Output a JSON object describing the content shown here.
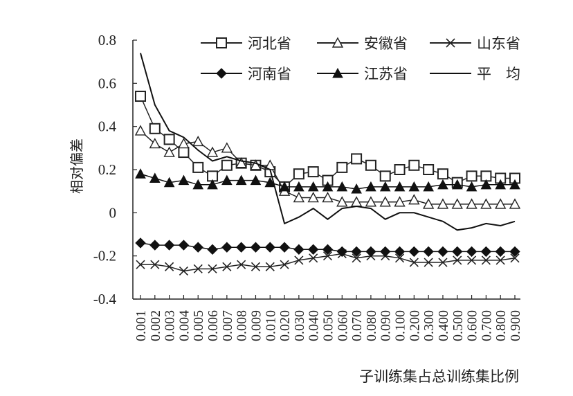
{
  "chart_data": {
    "type": "line",
    "title": "",
    "xlabel": "子训练集占总训练集比例",
    "ylabel": "相对偏差",
    "ylim": [
      -0.4,
      0.8
    ],
    "yticks": [
      "0.8",
      "0.6",
      "0.4",
      "0.2",
      "0",
      "-0.2",
      "-0.4"
    ],
    "ytick_values": [
      0.8,
      0.6,
      0.4,
      0.2,
      0,
      -0.2,
      -0.4
    ],
    "grid": false,
    "legend_position": "top",
    "categories": [
      "0.001",
      "0.002",
      "0.003",
      "0.004",
      "0.005",
      "0.006",
      "0.007",
      "0.008",
      "0.009",
      "0.010",
      "0.020",
      "0.030",
      "0.040",
      "0.050",
      "0.060",
      "0.070",
      "0.080",
      "0.090",
      "0.100",
      "0.200",
      "0.300",
      "0.400",
      "0.500",
      "0.600",
      "0.700",
      "0.800",
      "0.900"
    ],
    "series": [
      {
        "name": "河北省",
        "marker": "square-open",
        "color": "#222222",
        "values": [
          0.54,
          0.39,
          0.34,
          0.28,
          0.21,
          0.17,
          0.22,
          0.23,
          0.22,
          0.19,
          0.12,
          0.18,
          0.19,
          0.15,
          0.21,
          0.25,
          0.22,
          0.17,
          0.2,
          0.22,
          0.2,
          0.18,
          0.14,
          0.17,
          0.17,
          0.16,
          0.16
        ]
      },
      {
        "name": "安徽省",
        "marker": "triangle-open",
        "color": "#222222",
        "values": [
          0.38,
          0.32,
          0.28,
          0.32,
          0.33,
          0.28,
          0.3,
          0.23,
          0.22,
          0.22,
          0.1,
          0.07,
          0.07,
          0.07,
          0.05,
          0.05,
          0.05,
          0.05,
          0.05,
          0.06,
          0.04,
          0.04,
          0.04,
          0.04,
          0.04,
          0.04,
          0.04
        ]
      },
      {
        "name": "山东省",
        "marker": "cross",
        "color": "#222222",
        "values": [
          -0.24,
          -0.24,
          -0.25,
          -0.27,
          -0.26,
          -0.26,
          -0.25,
          -0.24,
          -0.25,
          -0.25,
          -0.24,
          -0.22,
          -0.21,
          -0.2,
          -0.19,
          -0.21,
          -0.2,
          -0.2,
          -0.21,
          -0.23,
          -0.23,
          -0.23,
          -0.22,
          -0.22,
          -0.22,
          -0.22,
          -0.21
        ]
      },
      {
        "name": "河南省",
        "marker": "diamond-filled",
        "color": "#111111",
        "values": [
          -0.14,
          -0.15,
          -0.15,
          -0.15,
          -0.16,
          -0.17,
          -0.16,
          -0.16,
          -0.16,
          -0.16,
          -0.16,
          -0.17,
          -0.17,
          -0.17,
          -0.18,
          -0.18,
          -0.18,
          -0.18,
          -0.18,
          -0.18,
          -0.18,
          -0.18,
          -0.18,
          -0.18,
          -0.18,
          -0.18,
          -0.18
        ]
      },
      {
        "name": "江苏省",
        "marker": "triangle-filled",
        "color": "#111111",
        "values": [
          0.18,
          0.16,
          0.14,
          0.15,
          0.13,
          0.13,
          0.15,
          0.15,
          0.15,
          0.14,
          0.12,
          0.12,
          0.12,
          0.12,
          0.12,
          0.11,
          0.12,
          0.12,
          0.12,
          0.12,
          0.12,
          0.13,
          0.13,
          0.12,
          0.13,
          0.13,
          0.13
        ]
      },
      {
        "name": "平　均",
        "marker": "none",
        "color": "#111111",
        "values": [
          0.74,
          0.5,
          0.38,
          0.35,
          0.29,
          0.24,
          0.26,
          0.24,
          0.23,
          0.2,
          -0.05,
          -0.02,
          0.02,
          -0.03,
          0.02,
          0.03,
          0.02,
          -0.03,
          0.0,
          0.0,
          -0.02,
          -0.04,
          -0.08,
          -0.07,
          -0.05,
          -0.06,
          -0.04
        ]
      }
    ]
  }
}
